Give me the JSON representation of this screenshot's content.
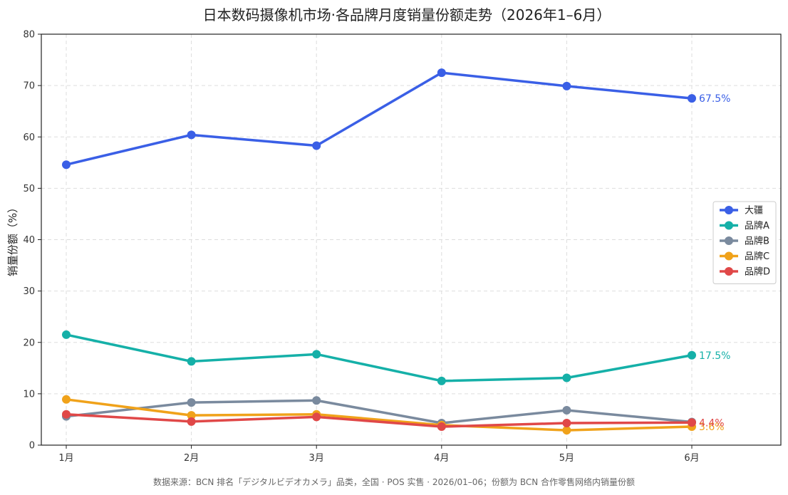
{
  "chart_data": {
    "type": "line",
    "title": "日本数码摄像机市场·各品牌月度销量份额走势（2026年1–6月）",
    "xlabel": "",
    "ylabel": "销量份额（%）",
    "ylim": [
      0,
      80
    ],
    "yticks": [
      0,
      10,
      20,
      30,
      40,
      50,
      60,
      70,
      80
    ],
    "categories": [
      "1月",
      "2月",
      "3月",
      "4月",
      "5月",
      "6月"
    ],
    "grid": true,
    "legend_position": "right",
    "series": [
      {
        "name": "大疆",
        "color": "#3a5fe6",
        "values": [
          54.6,
          60.4,
          58.3,
          72.5,
          69.9,
          67.5
        ],
        "end_label": "67.5%"
      },
      {
        "name": "品牌A",
        "color": "#15b0a8",
        "values": [
          21.5,
          16.3,
          17.7,
          12.5,
          13.1,
          17.5
        ],
        "end_label": "17.5%"
      },
      {
        "name": "品牌B",
        "color": "#7a8a9e",
        "values": [
          5.6,
          8.3,
          8.7,
          4.3,
          6.8,
          4.5
        ],
        "end_label": ""
      },
      {
        "name": "品牌C",
        "color": "#f0a21a",
        "values": [
          8.9,
          5.8,
          6.0,
          3.9,
          2.9,
          3.6
        ],
        "end_label": "3.6%"
      },
      {
        "name": "品牌D",
        "color": "#e04848",
        "values": [
          6.0,
          4.6,
          5.5,
          3.6,
          4.3,
          4.4
        ],
        "end_label": "4.4%"
      }
    ],
    "source": "数据来源：BCN 排名「デジタルビデオカメラ」品类，全国 · POS 实售 · 2026/01–06；份额为 BCN 合作零售网络内销量份额"
  }
}
